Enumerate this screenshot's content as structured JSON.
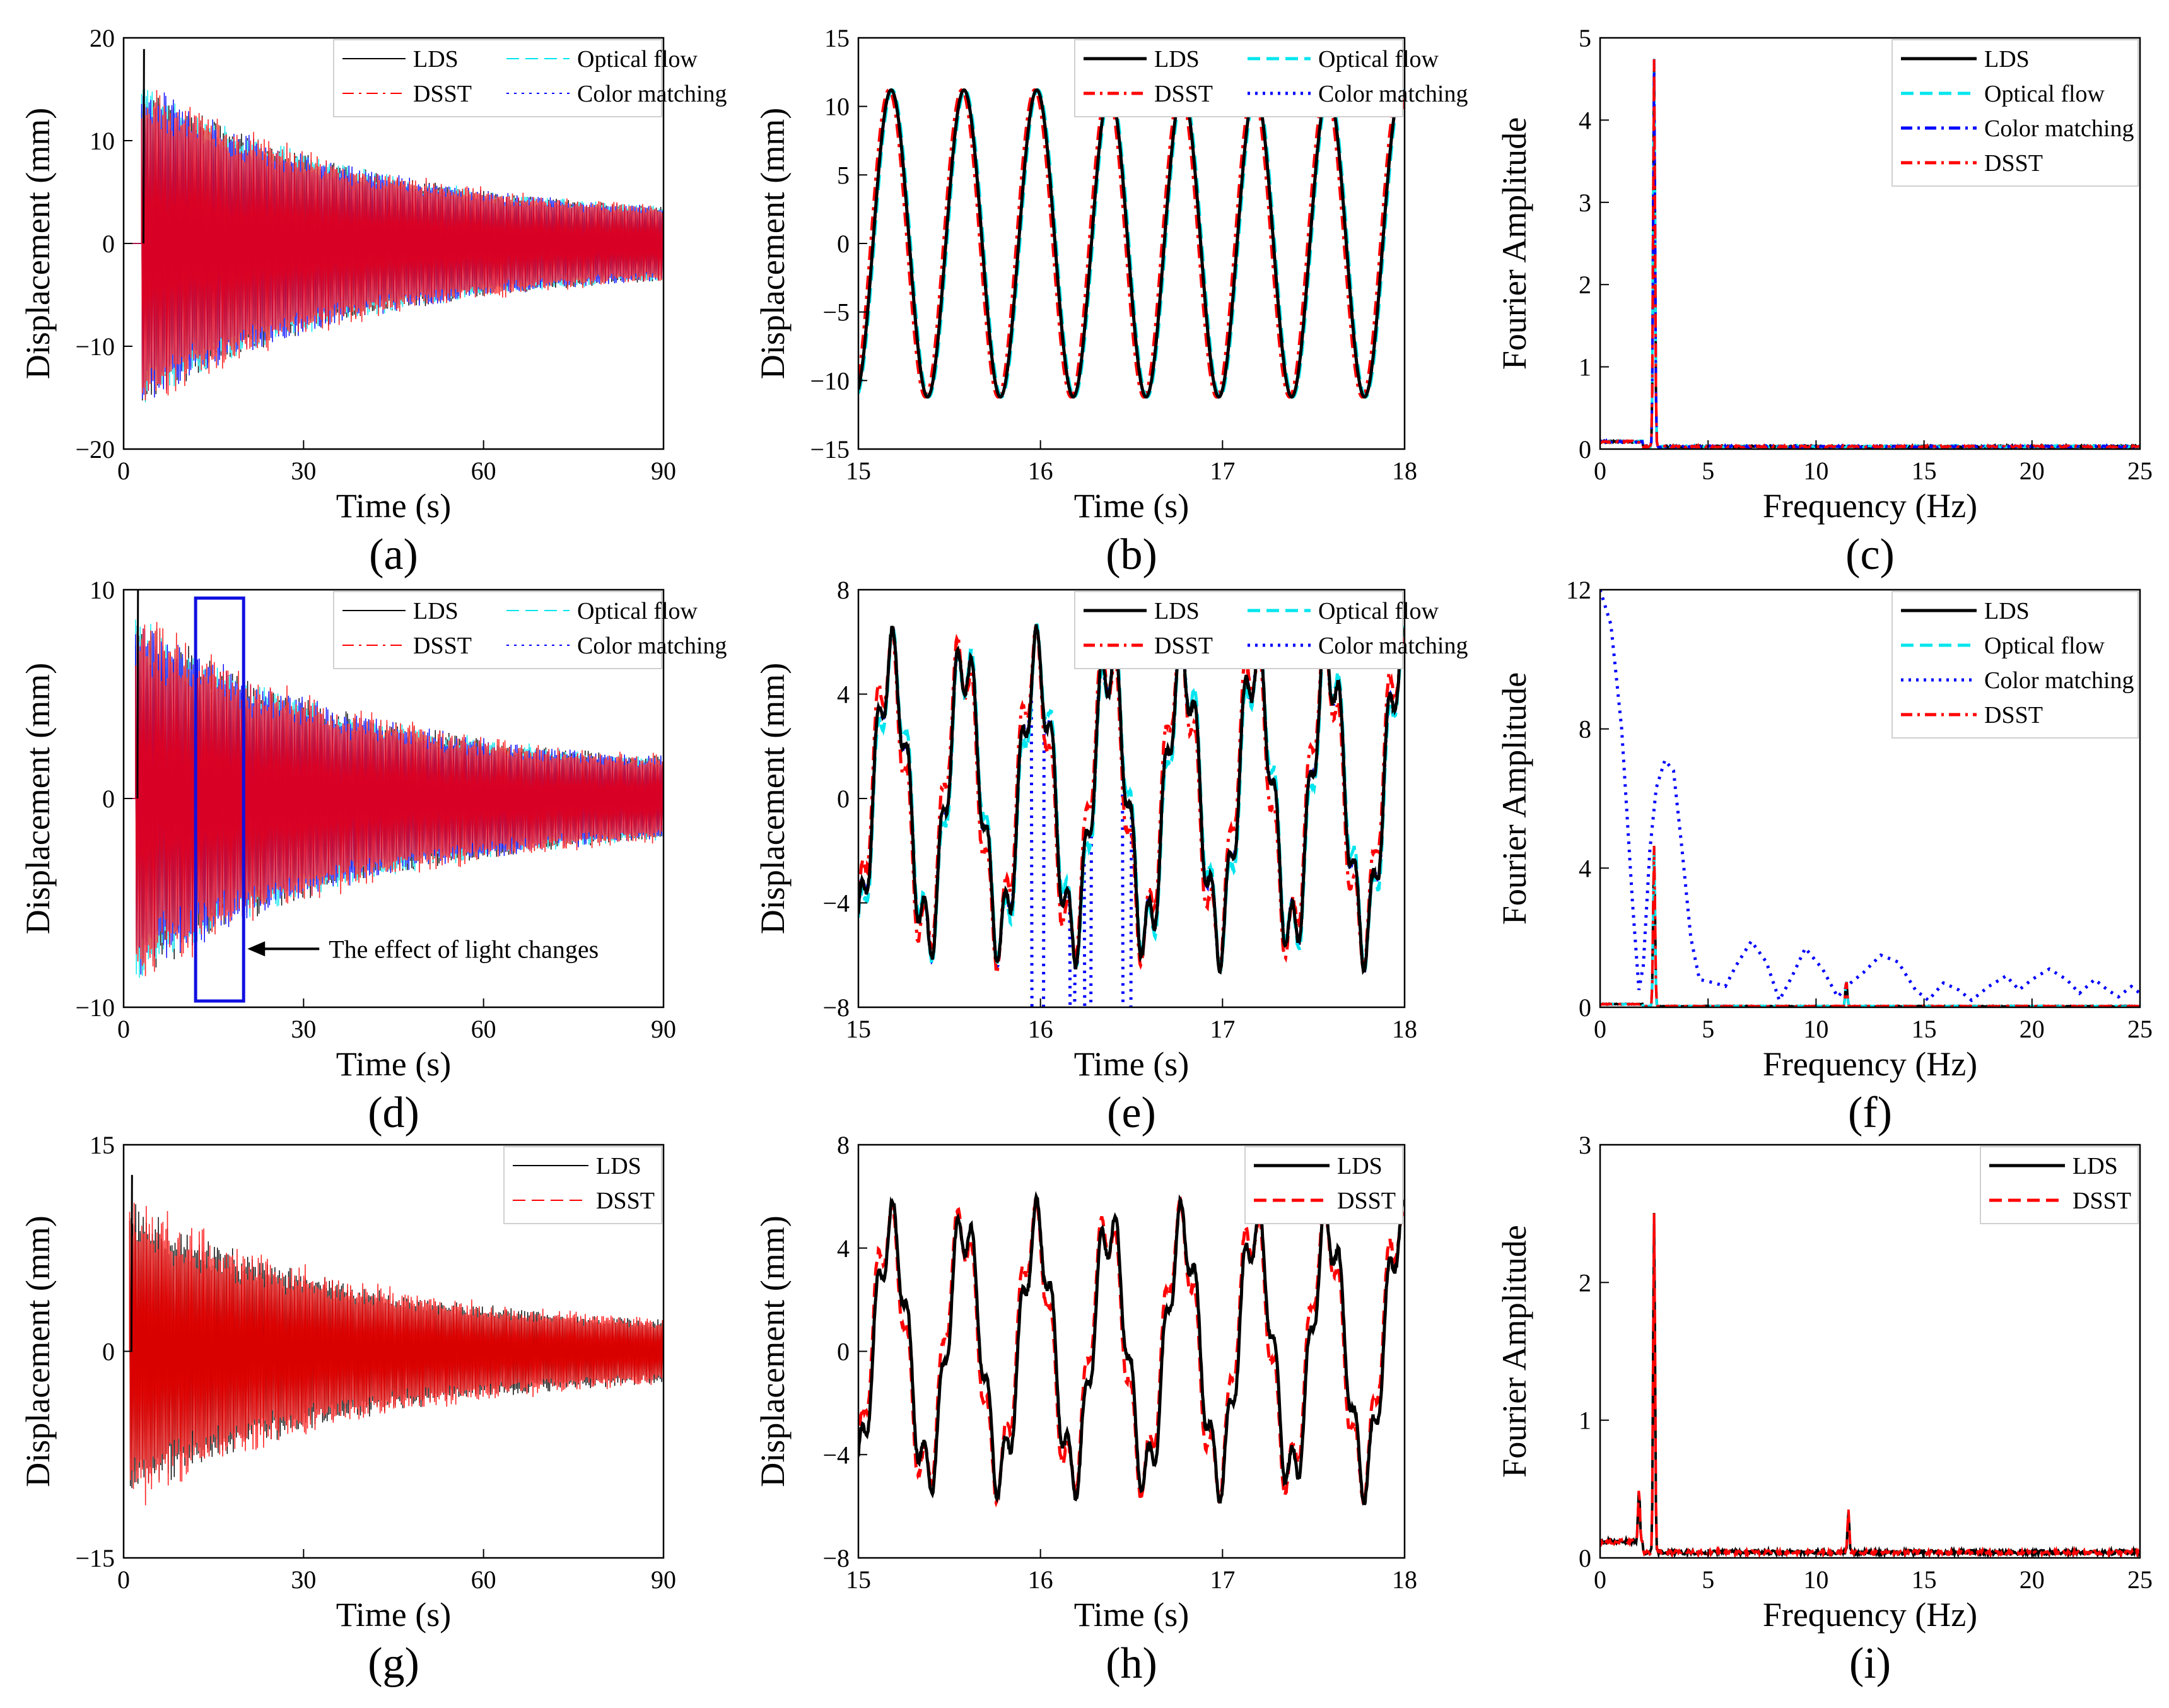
{
  "figure": {
    "colors": {
      "LDS": "#000000",
      "DSST": "#ff0000",
      "Optical flow": "#00e5ee",
      "Color matching": "#0000ff"
    }
  },
  "chart_data": [
    {
      "id": "a",
      "type": "line",
      "panel_label": "(a)",
      "xlabel": "Time (s)",
      "ylabel": "Displacement (mm)",
      "xlim": [
        0,
        90
      ],
      "ylim": [
        -20,
        20
      ],
      "xticks": [
        0,
        30,
        60,
        90
      ],
      "yticks": [
        -20,
        -10,
        0,
        10,
        20
      ],
      "ytick_labels": [
        "−20",
        "−10",
        "0",
        "10",
        "20"
      ],
      "legend": {
        "placement": "top-right",
        "cols": 2,
        "entries": [
          "LDS",
          "Optical flow",
          "DSST",
          "Color matching"
        ]
      },
      "signal": {
        "onset": 3,
        "A0": 15.5,
        "A_end": 2.4,
        "freq": 2.5,
        "noise": 0.08
      }
    },
    {
      "id": "b",
      "type": "line",
      "panel_label": "(b)",
      "xlabel": "Time (s)",
      "ylabel": "Displacement (mm)",
      "xlim": [
        15,
        18
      ],
      "ylim": [
        -15,
        15
      ],
      "xticks": [
        15,
        16,
        17,
        18
      ],
      "yticks": [
        -15,
        -10,
        -5,
        0,
        5,
        10,
        15
      ],
      "ytick_labels": [
        "−15",
        "−10",
        "−5",
        "0",
        "5",
        "10",
        "15"
      ],
      "legend": {
        "placement": "top-right",
        "cols": 2,
        "entries": [
          "LDS",
          "Optical flow",
          "DSST",
          "Color matching"
        ]
      },
      "signal": {
        "amplitude": 11.2,
        "freq": 2.5,
        "phase_t0": 15.0
      }
    },
    {
      "id": "c",
      "type": "line",
      "panel_label": "(c)",
      "xlabel": "Frequency (Hz)",
      "ylabel": "Fourier Amplitude",
      "xlim": [
        0,
        25
      ],
      "ylim": [
        0,
        5
      ],
      "xticks": [
        0,
        5,
        10,
        15,
        20,
        25
      ],
      "yticks": [
        0,
        1,
        2,
        3,
        4,
        5
      ],
      "ytick_labels": [
        "0",
        "1",
        "2",
        "3",
        "4",
        "5"
      ],
      "legend": {
        "placement": "top-right",
        "cols": 1,
        "entries": [
          "LDS",
          "Optical flow",
          "Color matching",
          "DSST"
        ]
      },
      "peaks": [
        {
          "f": 2.5,
          "amp": 4.72
        }
      ],
      "baseline": 0.03
    },
    {
      "id": "d",
      "type": "line",
      "panel_label": "(d)",
      "xlabel": "Time (s)",
      "ylabel": "Displacement (mm)",
      "xlim": [
        0,
        90
      ],
      "ylim": [
        -10,
        10
      ],
      "xticks": [
        0,
        30,
        60,
        90
      ],
      "yticks": [
        -10,
        0,
        10
      ],
      "ytick_labels": [
        "−10",
        "0",
        "10"
      ],
      "legend": {
        "placement": "top-right",
        "cols": 2,
        "entries": [
          "LDS",
          "Optical flow",
          "DSST",
          "Color matching"
        ]
      },
      "signal": {
        "onset": 2,
        "A0": 8.5,
        "A_end": 1.3,
        "freq": 2.5,
        "noise": 0.12
      },
      "annotation": {
        "text": "The effect of light changes",
        "box_x": [
          12,
          20
        ],
        "box_y": [
          -9.7,
          9.6
        ]
      }
    },
    {
      "id": "e",
      "type": "line",
      "panel_label": "(e)",
      "xlabel": "Time (s)",
      "ylabel": "Displacement (mm)",
      "xlim": [
        15,
        18
      ],
      "ylim": [
        -8,
        8
      ],
      "xticks": [
        15,
        16,
        17,
        18
      ],
      "yticks": [
        -8,
        -4,
        0,
        4,
        8
      ],
      "ytick_labels": [
        "−8",
        "−4",
        "0",
        "4",
        "8"
      ],
      "legend": {
        "placement": "top-right",
        "cols": 2,
        "entries": [
          "LDS",
          "Optical flow",
          "DSST",
          "Color matching"
        ]
      },
      "signal": {
        "amplitude": 5.3,
        "freq": 2.5,
        "harmonic_amp": 1.3,
        "harmonic_freq": 11.4
      }
    },
    {
      "id": "f",
      "type": "line",
      "panel_label": "(f)",
      "xlabel": "Frequency (Hz)",
      "ylabel": "Fourier Amplitude",
      "xlim": [
        0,
        25
      ],
      "ylim": [
        0,
        12
      ],
      "xticks": [
        0,
        5,
        10,
        15,
        20,
        25
      ],
      "yticks": [
        0,
        4,
        8,
        12
      ],
      "ytick_labels": [
        "0",
        "4",
        "8",
        "12"
      ],
      "legend": {
        "placement": "top-right",
        "cols": 1,
        "entries": [
          "LDS",
          "Optical flow",
          "Color matching",
          "DSST"
        ]
      },
      "peaks": [
        {
          "f": 2.5,
          "amp": 4.6
        },
        {
          "f": 11.4,
          "amp": 0.75
        }
      ],
      "baseline": 0.03,
      "color_matching_curve": [
        [
          0,
          12.0
        ],
        [
          0.5,
          11.0
        ],
        [
          1.0,
          8.0
        ],
        [
          1.5,
          3.0
        ],
        [
          1.8,
          0.5
        ],
        [
          2.0,
          1.2
        ],
        [
          2.3,
          4.5
        ],
        [
          2.6,
          6.3
        ],
        [
          3.0,
          7.1
        ],
        [
          3.4,
          6.8
        ],
        [
          3.8,
          4.5
        ],
        [
          4.2,
          2.0
        ],
        [
          4.6,
          0.8
        ],
        [
          5.3,
          0.7
        ],
        [
          5.8,
          0.6
        ],
        [
          6.3,
          1.2
        ],
        [
          7.0,
          1.9
        ],
        [
          7.7,
          1.3
        ],
        [
          8.3,
          0.2
        ],
        [
          8.9,
          0.9
        ],
        [
          9.5,
          1.7
        ],
        [
          10.3,
          1.1
        ],
        [
          11.0,
          0.3
        ],
        [
          11.6,
          0.7
        ],
        [
          12.2,
          1.0
        ],
        [
          13.0,
          1.5
        ],
        [
          13.8,
          1.3
        ],
        [
          14.6,
          0.5
        ],
        [
          15.2,
          0.2
        ],
        [
          15.9,
          0.7
        ],
        [
          16.6,
          0.5
        ],
        [
          17.2,
          0.2
        ],
        [
          18.0,
          0.6
        ],
        [
          18.8,
          0.9
        ],
        [
          19.4,
          0.5
        ],
        [
          20.0,
          0.8
        ],
        [
          20.8,
          1.1
        ],
        [
          21.6,
          0.8
        ],
        [
          22.2,
          0.4
        ],
        [
          22.9,
          0.8
        ],
        [
          23.5,
          0.5
        ],
        [
          24.0,
          0.3
        ],
        [
          24.6,
          0.6
        ],
        [
          25.0,
          0.4
        ]
      ]
    },
    {
      "id": "g",
      "type": "line",
      "panel_label": "(g)",
      "xlabel": "Time (s)",
      "ylabel": "Displacement (mm)",
      "xlim": [
        0,
        90
      ],
      "ylim": [
        -15,
        15
      ],
      "xticks": [
        0,
        30,
        60,
        90
      ],
      "yticks": [
        -15,
        0,
        15
      ],
      "ytick_labels": [
        "−15",
        "0",
        "15"
      ],
      "legend": {
        "placement": "top-right",
        "cols": 1,
        "entries": [
          "LDS",
          "DSST"
        ]
      },
      "signal": {
        "onset": 1,
        "A0": 10.5,
        "A_end": 1.4,
        "freq": 2.5,
        "noise": 0.15
      }
    },
    {
      "id": "h",
      "type": "line",
      "panel_label": "(h)",
      "xlabel": "Time (s)",
      "ylabel": "Displacement (mm)",
      "xlim": [
        15,
        18
      ],
      "ylim": [
        -8,
        8
      ],
      "xticks": [
        15,
        16,
        17,
        18
      ],
      "yticks": [
        -8,
        -4,
        0,
        4,
        8
      ],
      "ytick_labels": [
        "−8",
        "−4",
        "0",
        "4",
        "8"
      ],
      "legend": {
        "placement": "top-right",
        "cols": 1,
        "entries": [
          "LDS",
          "DSST"
        ]
      },
      "signal": {
        "amplitude": 4.8,
        "freq": 2.5,
        "harmonic_amp": 1.1,
        "harmonic_freq": 11.4
      }
    },
    {
      "id": "i",
      "type": "line",
      "panel_label": "(i)",
      "xlabel": "Frequency (Hz)",
      "ylabel": "Fourier Amplitude",
      "xlim": [
        0,
        25
      ],
      "ylim": [
        0,
        3
      ],
      "xticks": [
        0,
        5,
        10,
        15,
        20,
        25
      ],
      "yticks": [
        0,
        1,
        2,
        3
      ],
      "ytick_labels": [
        "0",
        "1",
        "2",
        "3"
      ],
      "legend": {
        "placement": "top-right",
        "cols": 1,
        "entries": [
          "LDS",
          "DSST"
        ]
      },
      "peaks": [
        {
          "f": 1.8,
          "amp": 0.38
        },
        {
          "f": 2.5,
          "amp": 2.46
        },
        {
          "f": 11.5,
          "amp": 0.3
        }
      ],
      "baseline": 0.04
    }
  ]
}
